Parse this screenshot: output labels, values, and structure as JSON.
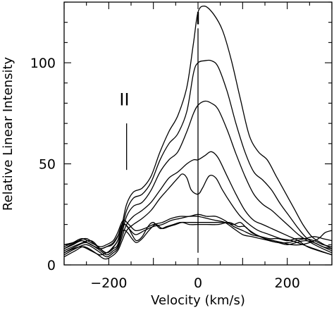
{
  "chart_data": {
    "type": "line",
    "xlabel": "Velocity (km/s)",
    "ylabel": "Relative Linear Intensity",
    "xlim": [
      -300,
      300
    ],
    "ylim": [
      0,
      130
    ],
    "xticks": [
      -200,
      0,
      200
    ],
    "yticks": [
      0,
      50,
      100
    ],
    "grid": false,
    "legend": "none",
    "annotations": [
      {
        "text": "I",
        "x": 0,
        "y": 119
      },
      {
        "text": "II",
        "x": -165,
        "y": 79
      }
    ],
    "reference_lines": [
      {
        "orientation": "vertical",
        "x": 0,
        "y_from": 6,
        "y_to": 117
      },
      {
        "orientation": "vertical",
        "x": -160,
        "y_from": 47,
        "y_to": 70
      }
    ],
    "series": [
      {
        "values": [
          [
            -300,
            7
          ],
          [
            -270,
            10
          ],
          [
            -240,
            12
          ],
          [
            -220,
            8
          ],
          [
            -205,
            6
          ],
          [
            -190,
            9
          ],
          [
            -180,
            12
          ],
          [
            -170,
            20
          ],
          [
            -160,
            30
          ],
          [
            -145,
            36
          ],
          [
            -125,
            38
          ],
          [
            -105,
            44
          ],
          [
            -85,
            56
          ],
          [
            -65,
            66
          ],
          [
            -45,
            74
          ],
          [
            -25,
            88
          ],
          [
            -10,
            110
          ],
          [
            0,
            125
          ],
          [
            15,
            128
          ],
          [
            35,
            124
          ],
          [
            55,
            116
          ],
          [
            75,
            101
          ],
          [
            95,
            82
          ],
          [
            115,
            64
          ],
          [
            135,
            56
          ],
          [
            155,
            52
          ],
          [
            175,
            44
          ],
          [
            195,
            36
          ],
          [
            215,
            28
          ],
          [
            235,
            20
          ],
          [
            255,
            14
          ],
          [
            275,
            11
          ],
          [
            300,
            8
          ]
        ]
      },
      {
        "values": [
          [
            -300,
            8
          ],
          [
            -275,
            11
          ],
          [
            -250,
            13
          ],
          [
            -225,
            9
          ],
          [
            -205,
            6
          ],
          [
            -190,
            8
          ],
          [
            -180,
            10
          ],
          [
            -170,
            18
          ],
          [
            -160,
            27
          ],
          [
            -145,
            33
          ],
          [
            -125,
            35
          ],
          [
            -105,
            41
          ],
          [
            -85,
            52
          ],
          [
            -65,
            60
          ],
          [
            -45,
            65
          ],
          [
            -25,
            76
          ],
          [
            -10,
            95
          ],
          [
            0,
            100
          ],
          [
            15,
            101
          ],
          [
            30,
            101
          ],
          [
            45,
            98
          ],
          [
            65,
            86
          ],
          [
            85,
            70
          ],
          [
            105,
            56
          ],
          [
            125,
            46
          ],
          [
            145,
            42
          ],
          [
            165,
            37
          ],
          [
            185,
            30
          ],
          [
            205,
            24
          ],
          [
            225,
            18
          ],
          [
            245,
            13
          ],
          [
            270,
            10
          ],
          [
            300,
            7
          ]
        ]
      },
      {
        "values": [
          [
            -300,
            6
          ],
          [
            -275,
            9
          ],
          [
            -250,
            11
          ],
          [
            -225,
            8
          ],
          [
            -205,
            5
          ],
          [
            -190,
            7
          ],
          [
            -180,
            9
          ],
          [
            -170,
            16
          ],
          [
            -160,
            24
          ],
          [
            -145,
            29
          ],
          [
            -125,
            31
          ],
          [
            -105,
            37
          ],
          [
            -85,
            46
          ],
          [
            -65,
            52
          ],
          [
            -45,
            56
          ],
          [
            -25,
            66
          ],
          [
            -10,
            75
          ],
          [
            0,
            79
          ],
          [
            15,
            81
          ],
          [
            30,
            80
          ],
          [
            45,
            77
          ],
          [
            65,
            67
          ],
          [
            85,
            55
          ],
          [
            105,
            44
          ],
          [
            125,
            35
          ],
          [
            145,
            30
          ],
          [
            165,
            27
          ],
          [
            185,
            23
          ],
          [
            205,
            19
          ],
          [
            225,
            15
          ],
          [
            245,
            12
          ],
          [
            270,
            9
          ],
          [
            300,
            6
          ]
        ]
      },
      {
        "values": [
          [
            -300,
            5
          ],
          [
            -275,
            8
          ],
          [
            -250,
            10
          ],
          [
            -225,
            7
          ],
          [
            -205,
            4
          ],
          [
            -190,
            6
          ],
          [
            -180,
            8
          ],
          [
            -170,
            14
          ],
          [
            -160,
            20
          ],
          [
            -145,
            24
          ],
          [
            -125,
            27
          ],
          [
            -105,
            31
          ],
          [
            -85,
            37
          ],
          [
            -65,
            43
          ],
          [
            -45,
            46
          ],
          [
            -25,
            50
          ],
          [
            -10,
            52
          ],
          [
            0,
            52
          ],
          [
            15,
            54
          ],
          [
            30,
            56
          ],
          [
            45,
            53
          ],
          [
            65,
            44
          ],
          [
            85,
            35
          ],
          [
            105,
            27
          ],
          [
            125,
            22
          ],
          [
            145,
            20
          ],
          [
            165,
            18
          ],
          [
            185,
            16
          ],
          [
            205,
            14
          ],
          [
            225,
            12
          ],
          [
            245,
            9
          ],
          [
            270,
            7
          ],
          [
            300,
            5
          ]
        ]
      },
      {
        "values": [
          [
            -300,
            4
          ],
          [
            -275,
            7
          ],
          [
            -255,
            9
          ],
          [
            -230,
            6
          ],
          [
            -210,
            3
          ],
          [
            -195,
            4
          ],
          [
            -180,
            7
          ],
          [
            -170,
            12
          ],
          [
            -160,
            17
          ],
          [
            -145,
            20
          ],
          [
            -125,
            23
          ],
          [
            -105,
            27
          ],
          [
            -85,
            33
          ],
          [
            -65,
            38
          ],
          [
            -45,
            43
          ],
          [
            -35,
            45
          ],
          [
            -25,
            43
          ],
          [
            -15,
            37
          ],
          [
            0,
            35
          ],
          [
            10,
            38
          ],
          [
            25,
            44
          ],
          [
            40,
            43
          ],
          [
            55,
            37
          ],
          [
            75,
            30
          ],
          [
            95,
            24
          ],
          [
            115,
            20
          ],
          [
            135,
            17
          ],
          [
            160,
            15
          ],
          [
            185,
            13
          ],
          [
            210,
            12
          ],
          [
            235,
            10
          ],
          [
            260,
            8
          ],
          [
            300,
            5
          ]
        ]
      },
      {
        "values": [
          [
            -300,
            9
          ],
          [
            -280,
            11
          ],
          [
            -260,
            13
          ],
          [
            -240,
            11
          ],
          [
            -220,
            9
          ],
          [
            -205,
            10
          ],
          [
            -190,
            12
          ],
          [
            -180,
            16
          ],
          [
            -168,
            22
          ],
          [
            -155,
            20
          ],
          [
            -140,
            17
          ],
          [
            -120,
            18
          ],
          [
            -100,
            20
          ],
          [
            -80,
            21
          ],
          [
            -60,
            23
          ],
          [
            -40,
            24
          ],
          [
            -20,
            24
          ],
          [
            0,
            25
          ],
          [
            20,
            24
          ],
          [
            40,
            24
          ],
          [
            60,
            22
          ],
          [
            80,
            19
          ],
          [
            100,
            17
          ],
          [
            120,
            15
          ],
          [
            140,
            14
          ],
          [
            160,
            13
          ],
          [
            180,
            13
          ],
          [
            200,
            12
          ],
          [
            220,
            13
          ],
          [
            240,
            13
          ],
          [
            260,
            12
          ],
          [
            280,
            10
          ],
          [
            300,
            9
          ]
        ]
      },
      {
        "values": [
          [
            -300,
            8
          ],
          [
            -280,
            10
          ],
          [
            -260,
            12
          ],
          [
            -240,
            10
          ],
          [
            -220,
            8
          ],
          [
            -205,
            9
          ],
          [
            -190,
            11
          ],
          [
            -178,
            15
          ],
          [
            -166,
            20
          ],
          [
            -155,
            18
          ],
          [
            -140,
            15
          ],
          [
            -120,
            17
          ],
          [
            -100,
            19
          ],
          [
            -80,
            20
          ],
          [
            -60,
            22
          ],
          [
            -40,
            23
          ],
          [
            -20,
            24
          ],
          [
            0,
            24
          ],
          [
            20,
            23
          ],
          [
            40,
            22
          ],
          [
            60,
            21
          ],
          [
            80,
            18
          ],
          [
            100,
            15
          ],
          [
            120,
            14
          ],
          [
            140,
            13
          ],
          [
            160,
            12
          ],
          [
            180,
            11
          ],
          [
            200,
            11
          ],
          [
            220,
            12
          ],
          [
            240,
            13
          ],
          [
            260,
            14
          ],
          [
            280,
            13
          ],
          [
            300,
            12
          ]
        ]
      },
      {
        "values": [
          [
            -300,
            6
          ],
          [
            -280,
            8
          ],
          [
            -260,
            9
          ],
          [
            -240,
            7
          ],
          [
            -220,
            5
          ],
          [
            -205,
            6
          ],
          [
            -192,
            8
          ],
          [
            -180,
            12
          ],
          [
            -168,
            17
          ],
          [
            -158,
            16
          ],
          [
            -148,
            13
          ],
          [
            -138,
            11
          ],
          [
            -125,
            13
          ],
          [
            -110,
            17
          ],
          [
            -95,
            20
          ],
          [
            -80,
            18
          ],
          [
            -65,
            19
          ],
          [
            -50,
            20
          ],
          [
            -35,
            21
          ],
          [
            -20,
            20
          ],
          [
            0,
            20
          ],
          [
            20,
            20
          ],
          [
            45,
            20
          ],
          [
            70,
            21
          ],
          [
            90,
            19
          ],
          [
            105,
            19
          ],
          [
            120,
            16
          ],
          [
            140,
            14
          ],
          [
            160,
            12
          ],
          [
            180,
            11
          ],
          [
            200,
            10
          ],
          [
            220,
            11
          ],
          [
            240,
            12
          ],
          [
            260,
            11
          ],
          [
            280,
            9
          ],
          [
            300,
            8
          ]
        ]
      },
      {
        "values": [
          [
            -300,
            10
          ],
          [
            -280,
            11
          ],
          [
            -260,
            12
          ],
          [
            -240,
            10
          ],
          [
            -220,
            8
          ],
          [
            -205,
            9
          ],
          [
            -192,
            10
          ],
          [
            -180,
            14
          ],
          [
            -170,
            20
          ],
          [
            -158,
            19
          ],
          [
            -148,
            15
          ],
          [
            -138,
            12
          ],
          [
            -125,
            14
          ],
          [
            -112,
            19
          ],
          [
            -100,
            21
          ],
          [
            -85,
            18
          ],
          [
            -70,
            19
          ],
          [
            -55,
            20
          ],
          [
            -40,
            21
          ],
          [
            -20,
            21
          ],
          [
            0,
            21
          ],
          [
            20,
            21
          ],
          [
            40,
            21
          ],
          [
            60,
            21
          ],
          [
            80,
            20
          ],
          [
            95,
            21
          ],
          [
            110,
            18
          ],
          [
            130,
            15
          ],
          [
            150,
            13
          ],
          [
            170,
            12
          ],
          [
            190,
            11
          ],
          [
            210,
            10
          ],
          [
            230,
            10
          ],
          [
            250,
            11
          ],
          [
            270,
            13
          ],
          [
            285,
            16
          ],
          [
            300,
            17
          ]
        ]
      }
    ]
  }
}
